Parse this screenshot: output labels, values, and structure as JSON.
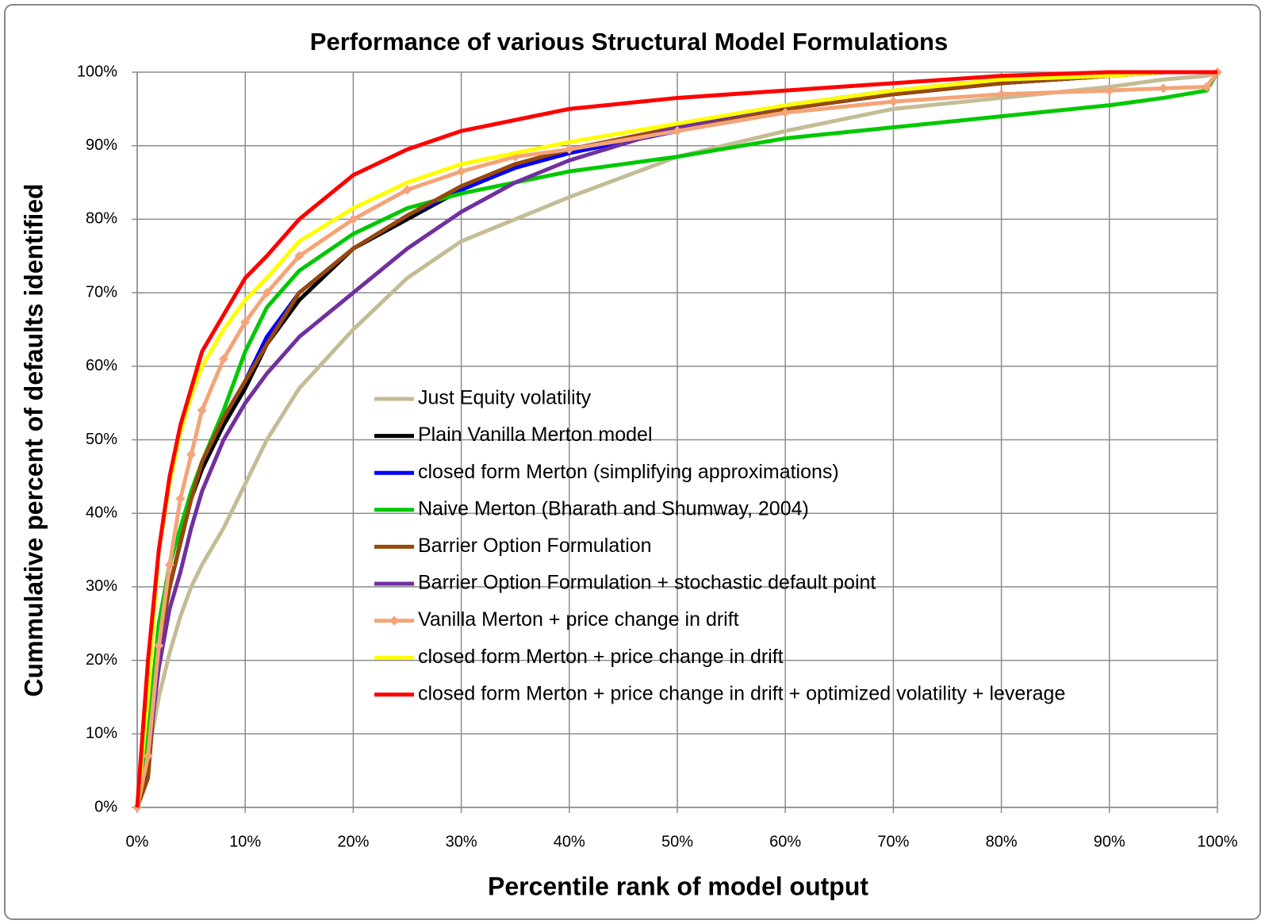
{
  "chart_data": {
    "type": "line",
    "title": "Performance of various Structural Model Formulations",
    "x_label": "Percentile rank of model output",
    "y_label": "Cummulative percent of defaults identified",
    "x": [
      0,
      1,
      2,
      3,
      4,
      5,
      6,
      8,
      10,
      12,
      15,
      20,
      25,
      30,
      35,
      40,
      50,
      60,
      70,
      80,
      90,
      95,
      99,
      100
    ],
    "series": [
      {
        "name": "Just Equity volatility",
        "color": "#c4bc96",
        "values": [
          0,
          7,
          15,
          21,
          26,
          30,
          33,
          38,
          44,
          50,
          57,
          65,
          72,
          77,
          80,
          83,
          88.5,
          92,
          95,
          96.5,
          98,
          99,
          99.5,
          100
        ]
      },
      {
        "name": "Plain Vanilla Merton model",
        "color": "#000000",
        "values": [
          0,
          6,
          22,
          30,
          36,
          42,
          46,
          52,
          57,
          63,
          69,
          76,
          80,
          84,
          87,
          89,
          92,
          95,
          97,
          98.5,
          99.5,
          100,
          100,
          100
        ]
      },
      {
        "name": "closed form Merton (simplifying approximations)",
        "color": "#0000ff",
        "values": [
          0,
          6,
          22,
          30,
          36,
          42,
          47,
          53,
          58,
          64,
          70,
          76,
          80.5,
          84,
          87,
          89,
          92,
          95,
          97,
          98.5,
          99.5,
          100,
          100,
          100
        ]
      },
      {
        "name": "Naive Merton (Bharath and Shumway, 2004)",
        "color": "#00c800",
        "values": [
          0,
          10,
          25,
          33,
          38,
          43,
          47,
          54,
          62,
          68,
          73,
          78,
          81.5,
          83.5,
          85,
          86.5,
          88.5,
          91,
          92.5,
          94,
          95.5,
          96.5,
          97.5,
          100
        ]
      },
      {
        "name": "Barrier Option Formulation",
        "color": "#984807",
        "values": [
          0,
          4,
          22,
          30,
          36,
          42,
          47,
          53,
          58,
          63,
          70,
          76,
          80.5,
          84.5,
          87.5,
          89.5,
          92.5,
          95,
          97,
          98.5,
          99.5,
          100,
          100,
          100
        ]
      },
      {
        "name": "Barrier Option Formulation + stochastic default point",
        "color": "#7030a0",
        "values": [
          0,
          7,
          19,
          27,
          32,
          38,
          43,
          50,
          55,
          59,
          64,
          70,
          76,
          81,
          85,
          88,
          92.5,
          95.5,
          97.5,
          99,
          99.5,
          100,
          100,
          100
        ]
      },
      {
        "name": "Vanilla Merton + price change in drift",
        "color": "#f4a478",
        "marker": "diamond",
        "values": [
          0,
          7,
          22,
          33,
          42,
          48,
          54,
          61,
          66,
          70,
          75,
          80,
          84,
          86.5,
          88.5,
          89.5,
          92,
          94.5,
          96,
          97,
          97.5,
          97.8,
          98,
          100
        ]
      },
      {
        "name": "closed form Merton + price change in drift",
        "color": "#ffff00",
        "values": [
          0,
          15,
          35,
          44,
          51,
          56,
          60,
          65,
          69,
          72,
          77,
          81.5,
          85,
          87.5,
          89,
          90.5,
          93,
          95.5,
          97.5,
          99,
          99.5,
          100,
          100,
          100
        ]
      },
      {
        "name": "closed form Merton + price change in drift + optimized volatility + leverage",
        "color": "#ff0000",
        "values": [
          0,
          20,
          35,
          45,
          52,
          57,
          62,
          67,
          72,
          75,
          80,
          86,
          89.5,
          92,
          93.5,
          95,
          96.5,
          97.5,
          98.5,
          99.5,
          100,
          100,
          100,
          100
        ]
      }
    ],
    "xlim": [
      0,
      100
    ],
    "xticks": [
      {
        "value": 0,
        "label": "0%"
      },
      {
        "value": 10,
        "label": "10%"
      },
      {
        "value": 20,
        "label": "20%"
      },
      {
        "value": 30,
        "label": "30%"
      },
      {
        "value": 40,
        "label": "40%"
      },
      {
        "value": 50,
        "label": "50%"
      },
      {
        "value": 60,
        "label": "60%"
      },
      {
        "value": 70,
        "label": "70%"
      },
      {
        "value": 80,
        "label": "80%"
      },
      {
        "value": 90,
        "label": "90%"
      },
      {
        "value": 100,
        "label": "100%"
      }
    ],
    "ylim": [
      0,
      100
    ],
    "yticks": [
      {
        "value": 0,
        "label": "0%"
      },
      {
        "value": 10,
        "label": "10%"
      },
      {
        "value": 20,
        "label": "20%"
      },
      {
        "value": 30,
        "label": "30%"
      },
      {
        "value": 40,
        "label": "40%"
      },
      {
        "value": 50,
        "label": "50%"
      },
      {
        "value": 60,
        "label": "60%"
      },
      {
        "value": 70,
        "label": "70%"
      },
      {
        "value": 80,
        "label": "80%"
      },
      {
        "value": 90,
        "label": "90%"
      },
      {
        "value": 100,
        "label": "100%"
      }
    ],
    "grid": true
  }
}
